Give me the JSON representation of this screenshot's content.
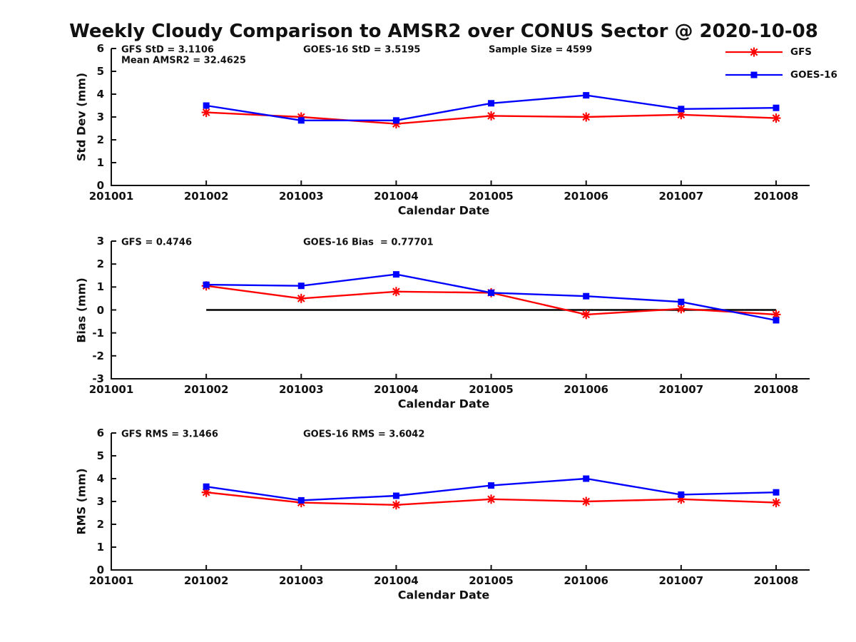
{
  "title": "Weekly Cloudy Comparison to AMSR2 over CONUS Sector @ 2020-10-08",
  "legend": {
    "items": [
      {
        "label": "GFS",
        "color": "#ff0000",
        "marker": "asterisk"
      },
      {
        "label": "GOES-16",
        "color": "#0000ff",
        "marker": "square"
      }
    ]
  },
  "chart_data": [
    {
      "type": "line",
      "name": "std-dev",
      "ylabel": "Std Dev (mm)",
      "xlabel": "Calendar Date",
      "ylim": [
        0,
        6
      ],
      "yticks": [
        0,
        1,
        2,
        3,
        4,
        5,
        6
      ],
      "xticks": [
        "201001",
        "201002",
        "201003",
        "201004",
        "201005",
        "201006",
        "201007",
        "201008"
      ],
      "x": [
        201002,
        201003,
        201004,
        201005,
        201006,
        201007,
        201008
      ],
      "series": [
        {
          "name": "GFS",
          "color": "#ff0000",
          "marker": "asterisk",
          "values": [
            3.2,
            3.0,
            2.7,
            3.05,
            3.0,
            3.1,
            2.95
          ]
        },
        {
          "name": "GOES-16",
          "color": "#0000ff",
          "marker": "square",
          "values": [
            3.5,
            2.85,
            2.85,
            3.6,
            3.95,
            3.35,
            3.4
          ]
        }
      ],
      "annotations": [
        "GFS StD = 3.1106",
        "GOES-16 StD = 3.5195",
        "Sample Size = 4599",
        "Mean AMSR2 = 32.4625"
      ]
    },
    {
      "type": "line",
      "name": "bias",
      "ylabel": "Bias (mm)",
      "xlabel": "Calendar Date",
      "ylim": [
        -3,
        3
      ],
      "yticks": [
        3,
        2,
        1,
        0,
        -1,
        -2,
        -3
      ],
      "xticks": [
        "201001",
        "201002",
        "201003",
        "201004",
        "201005",
        "201006",
        "201007",
        "201008"
      ],
      "x": [
        201002,
        201003,
        201004,
        201005,
        201006,
        201007,
        201008
      ],
      "zero_line": {
        "y": 0,
        "x_from": 201002,
        "x_to": 201008,
        "color": "#000000"
      },
      "series": [
        {
          "name": "GFS",
          "color": "#ff0000",
          "marker": "asterisk",
          "values": [
            1.05,
            0.5,
            0.8,
            0.75,
            -0.2,
            0.05,
            -0.2
          ]
        },
        {
          "name": "GOES-16",
          "color": "#0000ff",
          "marker": "square",
          "values": [
            1.1,
            1.05,
            1.55,
            0.75,
            0.6,
            0.35,
            -0.45
          ]
        }
      ],
      "annotations": [
        "GFS = 0.4746",
        "GOES-16 Bias  = 0.77701"
      ]
    },
    {
      "type": "line",
      "name": "rms",
      "ylabel": "RMS (mm)",
      "xlabel": "Calendar Date",
      "ylim": [
        0,
        6
      ],
      "yticks": [
        0,
        1,
        2,
        3,
        4,
        5,
        6
      ],
      "xticks": [
        "201001",
        "201002",
        "201003",
        "201004",
        "201005",
        "201006",
        "201007",
        "201008"
      ],
      "x": [
        201002,
        201003,
        201004,
        201005,
        201006,
        201007,
        201008
      ],
      "series": [
        {
          "name": "GFS",
          "color": "#ff0000",
          "marker": "asterisk",
          "values": [
            3.4,
            2.95,
            2.85,
            3.1,
            3.0,
            3.1,
            2.95
          ]
        },
        {
          "name": "GOES-16",
          "color": "#0000ff",
          "marker": "square",
          "values": [
            3.65,
            3.05,
            3.25,
            3.7,
            4.0,
            3.3,
            3.4
          ]
        }
      ],
      "annotations": [
        "GFS RMS = 3.1466",
        "GOES-16 RMS = 3.6042"
      ]
    }
  ]
}
